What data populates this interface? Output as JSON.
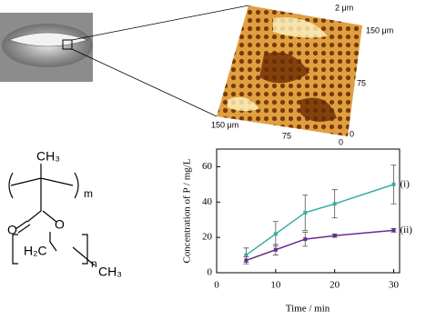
{
  "afm": {
    "labels": [
      "2 μm",
      "150 μm",
      "75",
      "0",
      "150 μm",
      "75",
      "0"
    ]
  },
  "structure": {
    "labels": [
      "CH₃",
      "m",
      "O",
      "O",
      "H₂C",
      "n",
      "CH₃"
    ]
  },
  "chart_data": {
    "type": "line",
    "x": [
      5,
      10,
      15,
      20,
      30
    ],
    "xlim": [
      0,
      31
    ],
    "xticks": [
      0,
      10,
      20,
      30
    ],
    "ylim": [
      0,
      70
    ],
    "yticks": [
      0,
      20,
      40,
      60
    ],
    "x_label": "Time / min",
    "y_label": "Concentration of P / mg/L",
    "series": [
      {
        "name": "(i)",
        "color": "#3aaea4",
        "values": [
          10,
          22,
          34,
          39,
          50
        ],
        "errors": [
          4,
          7,
          10,
          8,
          11
        ]
      },
      {
        "name": "(ii)",
        "color": "#6a2a8e",
        "values": [
          7,
          13,
          19,
          21,
          24
        ],
        "errors": [
          2,
          3,
          4,
          1,
          1
        ]
      }
    ]
  }
}
